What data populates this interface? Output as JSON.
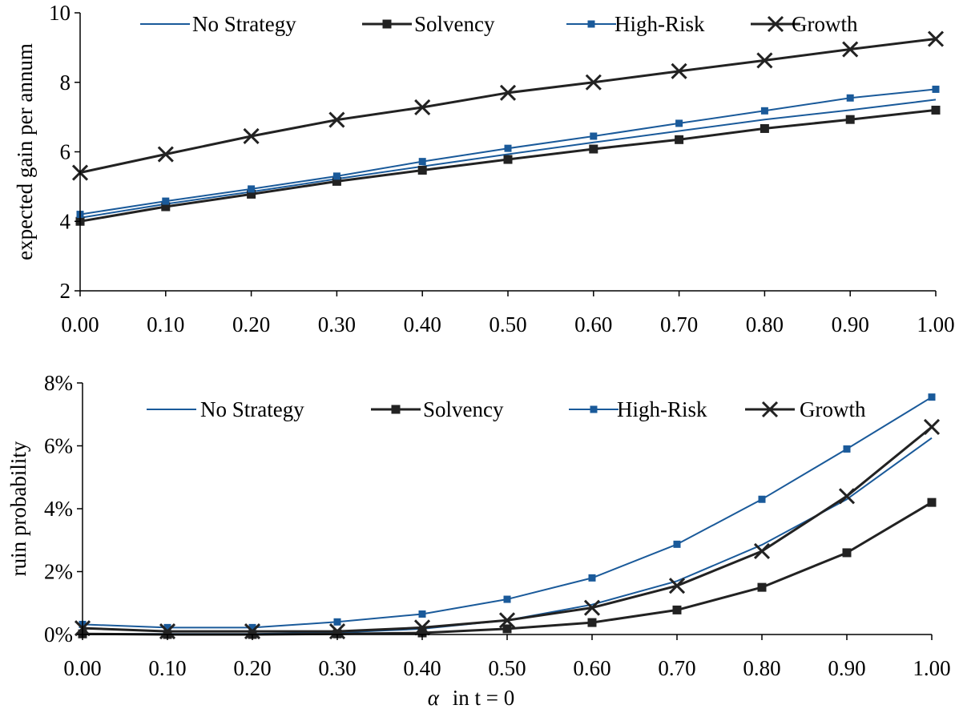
{
  "colors": {
    "no_strategy": "#1a5a9a",
    "solvency": "#222222",
    "high_risk": "#1a5a9a",
    "growth": "#222222"
  },
  "chart_data": [
    {
      "type": "line",
      "title": "",
      "xlabel": "",
      "ylabel": "expected gain per annum",
      "x": [
        0.0,
        0.1,
        0.2,
        0.3,
        0.4,
        0.5,
        0.6,
        0.7,
        0.8,
        0.9,
        1.0
      ],
      "x_tick_labels": [
        "0.00",
        "0.10",
        "0.20",
        "0.30",
        "0.40",
        "0.50",
        "0.60",
        "0.70",
        "0.80",
        "0.90",
        "1.00"
      ],
      "ylim": [
        2,
        10
      ],
      "y_ticks": [
        2,
        4,
        6,
        8,
        10
      ],
      "y_tick_labels": [
        "2",
        "4",
        "6",
        "8",
        "10"
      ],
      "grid": false,
      "legend_position": "top",
      "series": [
        {
          "key": "no_strategy",
          "name": "No Strategy",
          "marker": "none",
          "values": [
            4.1,
            4.5,
            4.85,
            5.22,
            5.58,
            5.93,
            6.27,
            6.6,
            6.93,
            7.2,
            7.5
          ]
        },
        {
          "key": "solvency",
          "name": "Solvency",
          "marker": "square",
          "values": [
            4.0,
            4.42,
            4.78,
            5.15,
            5.47,
            5.78,
            6.08,
            6.35,
            6.67,
            6.93,
            7.2
          ]
        },
        {
          "key": "high_risk",
          "name": "High-Risk",
          "marker": "square-small",
          "values": [
            4.2,
            4.58,
            4.93,
            5.3,
            5.72,
            6.1,
            6.45,
            6.82,
            7.18,
            7.55,
            7.8
          ]
        },
        {
          "key": "growth",
          "name": "Growth",
          "marker": "x",
          "values": [
            5.4,
            5.93,
            6.45,
            6.92,
            7.28,
            7.7,
            8.0,
            8.32,
            8.63,
            8.95,
            9.25
          ]
        }
      ]
    },
    {
      "type": "line",
      "title": "",
      "xlabel": "α in t = 0",
      "xlabel_symbol": "α",
      "xlabel_rest": "in t = 0",
      "ylabel": "ruin probability",
      "x": [
        0.0,
        0.1,
        0.2,
        0.3,
        0.4,
        0.5,
        0.6,
        0.7,
        0.8,
        0.9,
        1.0
      ],
      "x_tick_labels": [
        "0.00",
        "0.10",
        "0.20",
        "0.30",
        "0.40",
        "0.50",
        "0.60",
        "0.70",
        "0.80",
        "0.90",
        "1.00"
      ],
      "ylim": [
        0,
        8
      ],
      "y_unit": "%",
      "y_ticks": [
        0,
        2,
        4,
        6,
        8
      ],
      "y_tick_labels": [
        "0%",
        "2%",
        "4%",
        "6%",
        "8%"
      ],
      "grid": false,
      "legend_position": "top",
      "series": [
        {
          "key": "no_strategy",
          "name": "No Strategy",
          "marker": "none",
          "values": [
            0.02,
            0.02,
            0.02,
            0.06,
            0.18,
            0.45,
            0.95,
            1.7,
            2.85,
            4.3,
            6.25
          ]
        },
        {
          "key": "solvency",
          "name": "Solvency",
          "marker": "square",
          "values": [
            0.02,
            0.0,
            0.0,
            0.02,
            0.05,
            0.18,
            0.38,
            0.78,
            1.5,
            2.6,
            4.2
          ]
        },
        {
          "key": "high_risk",
          "name": "High-Risk",
          "marker": "square-small",
          "values": [
            0.32,
            0.22,
            0.22,
            0.4,
            0.65,
            1.12,
            1.8,
            2.87,
            4.3,
            5.9,
            7.55
          ]
        },
        {
          "key": "growth",
          "name": "Growth",
          "marker": "x",
          "values": [
            0.2,
            0.1,
            0.1,
            0.1,
            0.22,
            0.45,
            0.85,
            1.55,
            2.65,
            4.4,
            6.6
          ]
        }
      ]
    }
  ]
}
